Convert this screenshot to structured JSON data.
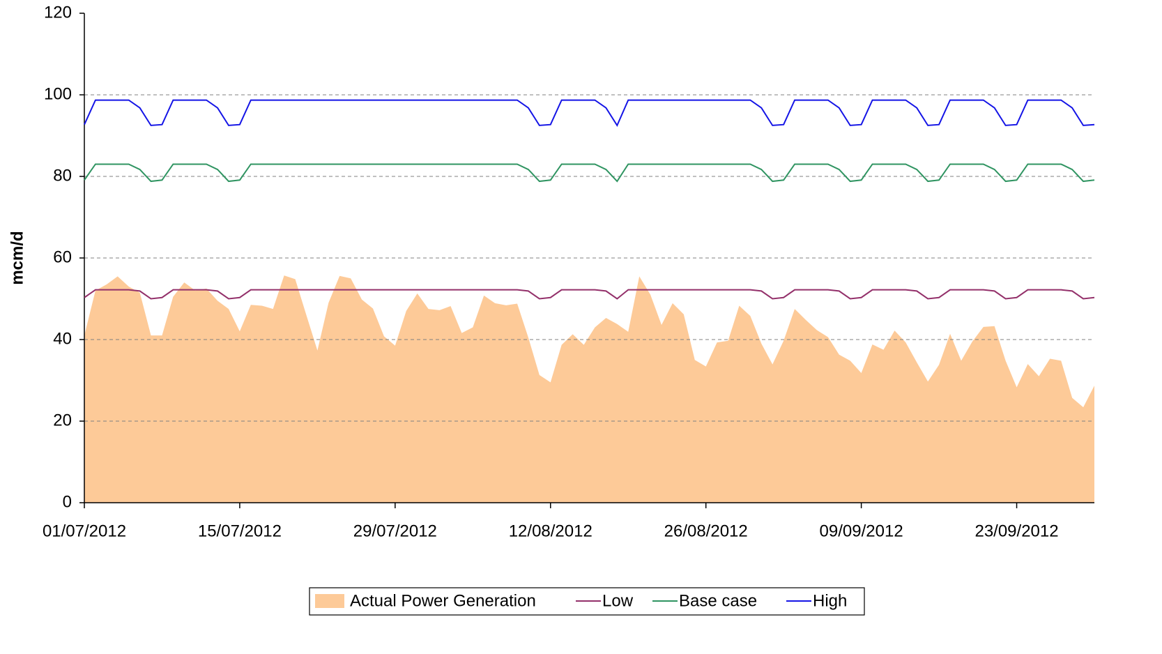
{
  "chart_data": {
    "type": "line",
    "ylabel": "mcm/d",
    "categories": [
      "01/07/2012",
      null,
      null,
      null,
      null,
      null,
      null,
      null,
      null,
      null,
      null,
      null,
      null,
      null,
      "15/07/2012",
      null,
      null,
      null,
      null,
      null,
      null,
      null,
      null,
      null,
      null,
      null,
      null,
      null,
      "29/07/2012",
      null,
      null,
      null,
      null,
      null,
      null,
      null,
      null,
      null,
      null,
      null,
      null,
      null,
      "12/08/2012",
      null,
      null,
      null,
      null,
      null,
      null,
      null,
      null,
      null,
      null,
      null,
      null,
      null,
      "26/08/2012",
      null,
      null,
      null,
      null,
      null,
      null,
      null,
      null,
      null,
      null,
      null,
      null,
      null,
      "09/09/2012",
      null,
      null,
      null,
      null,
      null,
      null,
      null,
      null,
      null,
      null,
      null,
      null,
      null,
      "23/09/2012",
      null,
      null,
      null,
      null,
      null,
      null,
      null
    ],
    "ylim": [
      0,
      120
    ],
    "yticks": [
      0,
      20,
      40,
      60,
      80,
      100,
      120
    ],
    "grid": true,
    "legend": "bottom",
    "series": [
      {
        "name": "Actual Power Generation",
        "kind": "area",
        "color": "#fdca98",
        "values": [
          41,
          52,
          53.5,
          55.5,
          53,
          51.5,
          41,
          41,
          50.5,
          54,
          52,
          52.5,
          49.5,
          47.5,
          42,
          48.5,
          48.3,
          47.5,
          55.7,
          54.8,
          46,
          37.3,
          49,
          55.6,
          55,
          49.8,
          47.6,
          40.8,
          38.5,
          47,
          51.3,
          47.5,
          47.2,
          48.2,
          41.6,
          43,
          50.8,
          48.9,
          48.4,
          48.8,
          40.5,
          31.3,
          29.5,
          38.7,
          41.3,
          38.7,
          43,
          45.3,
          43.8,
          41.9,
          55.5,
          51,
          43.6,
          48.9,
          46.2,
          35,
          33.4,
          39.3,
          39.7,
          48.3,
          45.8,
          39,
          33.9,
          39.7,
          47.5,
          44.8,
          42.3,
          40.6,
          36.3,
          34.8,
          31.8,
          38.8,
          37.5,
          42.2,
          39.3,
          34.4,
          29.7,
          33.8,
          41.4,
          34.8,
          39.5,
          43.1,
          43.3,
          34.8,
          28.3,
          34,
          31,
          35.3,
          34.8,
          25.7,
          23.4,
          28.7
        ]
      },
      {
        "name": "Low",
        "kind": "line",
        "color": "#93306a",
        "values": [
          50.3,
          52.2,
          52.2,
          52.2,
          52.2,
          51.9,
          50,
          50.3,
          52.2,
          52.2,
          52.2,
          52.2,
          51.9,
          50,
          50.3,
          52.2,
          52.2,
          52.2,
          52.2,
          52.2,
          52.2,
          52.2,
          52.2,
          52.2,
          52.2,
          52.2,
          52.2,
          52.2,
          52.2,
          52.2,
          52.2,
          52.2,
          52.2,
          52.2,
          52.2,
          52.2,
          52.2,
          52.2,
          52.2,
          52.2,
          51.9,
          50,
          50.3,
          52.2,
          52.2,
          52.2,
          52.2,
          51.9,
          50,
          52.2,
          52.2,
          52.2,
          52.2,
          52.2,
          52.2,
          52.2,
          52.2,
          52.2,
          52.2,
          52.2,
          52.2,
          51.9,
          50,
          50.3,
          52.2,
          52.2,
          52.2,
          52.2,
          51.9,
          50,
          50.3,
          52.2,
          52.2,
          52.2,
          52.2,
          51.9,
          50,
          50.3,
          52.2,
          52.2,
          52.2,
          52.2,
          51.9,
          50,
          50.3,
          52.2,
          52.2,
          52.2,
          52.2,
          51.9,
          50,
          50.3
        ]
      },
      {
        "name": "Base case",
        "kind": "line",
        "color": "#2f9461",
        "values": [
          79.1,
          83,
          83,
          83,
          83,
          81.7,
          78.8,
          79.1,
          83,
          83,
          83,
          83,
          81.7,
          78.8,
          79.1,
          83,
          83,
          83,
          83,
          83,
          83,
          83,
          83,
          83,
          83,
          83,
          83,
          83,
          83,
          83,
          83,
          83,
          83,
          83,
          83,
          83,
          83,
          83,
          83,
          83,
          81.7,
          78.8,
          79.1,
          83,
          83,
          83,
          83,
          81.7,
          78.8,
          83,
          83,
          83,
          83,
          83,
          83,
          83,
          83,
          83,
          83,
          83,
          83,
          81.7,
          78.8,
          79.1,
          83,
          83,
          83,
          83,
          81.7,
          78.8,
          79.1,
          83,
          83,
          83,
          83,
          81.7,
          78.8,
          79.1,
          83,
          83,
          83,
          83,
          81.7,
          78.8,
          79.1,
          83,
          83,
          83,
          83,
          81.7,
          78.8,
          79.1
        ]
      },
      {
        "name": "High",
        "kind": "line",
        "color": "#1414e6",
        "values": [
          92.7,
          98.7,
          98.7,
          98.7,
          98.7,
          96.8,
          92.5,
          92.7,
          98.7,
          98.7,
          98.7,
          98.7,
          96.8,
          92.5,
          92.7,
          98.7,
          98.7,
          98.7,
          98.7,
          98.7,
          98.7,
          98.7,
          98.7,
          98.7,
          98.7,
          98.7,
          98.7,
          98.7,
          98.7,
          98.7,
          98.7,
          98.7,
          98.7,
          98.7,
          98.7,
          98.7,
          98.7,
          98.7,
          98.7,
          98.7,
          96.8,
          92.5,
          92.7,
          98.7,
          98.7,
          98.7,
          98.7,
          96.8,
          92.5,
          98.7,
          98.7,
          98.7,
          98.7,
          98.7,
          98.7,
          98.7,
          98.7,
          98.7,
          98.7,
          98.7,
          98.7,
          96.8,
          92.5,
          92.7,
          98.7,
          98.7,
          98.7,
          98.7,
          96.8,
          92.5,
          92.7,
          98.7,
          98.7,
          98.7,
          98.7,
          96.8,
          92.5,
          92.7,
          98.7,
          98.7,
          98.7,
          98.7,
          96.8,
          92.5,
          92.7,
          98.7,
          98.7,
          98.7,
          98.7,
          96.8,
          92.5,
          92.7
        ]
      }
    ]
  }
}
